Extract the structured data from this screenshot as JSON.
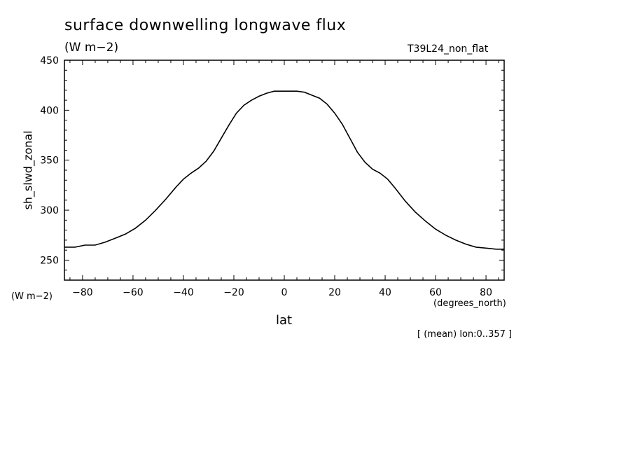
{
  "header": {
    "title": "surface downwelling longwave flux",
    "units": "(W m−2)",
    "run_name": "T39L24_non_flat"
  },
  "footer": {
    "note": "[ (mean) lon:0..357 ]"
  },
  "chart_data": {
    "type": "line",
    "title": "surface downwelling longwave flux",
    "xlabel": "lat",
    "xunits": "(degrees_north)",
    "ylabel": "sh_slwd_zonal",
    "yunits": "(W m−2)",
    "xlim": [
      -87.2,
      87.2
    ],
    "ylim": [
      230,
      450
    ],
    "x_ticks": [
      -80,
      -60,
      -40,
      -20,
      0,
      20,
      40,
      60,
      80
    ],
    "x_tick_labels": [
      "−80",
      "−60",
      "−40",
      "−20",
      "0",
      "20",
      "40",
      "60",
      "80"
    ],
    "y_ticks": [
      250,
      300,
      350,
      400,
      450
    ],
    "y_tick_labels": [
      "250",
      "300",
      "350",
      "400",
      "450"
    ],
    "grid": false,
    "line_color": "#000000",
    "series": [
      {
        "x": [
          -87.2,
          -83,
          -79,
          -75,
          -71,
          -67,
          -63,
          -59,
          -55,
          -51,
          -47,
          -43,
          -40,
          -37,
          -34,
          -31,
          -28,
          -25,
          -22,
          -19,
          -16,
          -13,
          -10,
          -7,
          -4,
          -1,
          2,
          5,
          8,
          11,
          14,
          17,
          20,
          23,
          26,
          29,
          32,
          35,
          38,
          41,
          44,
          48,
          52,
          56,
          60,
          64,
          68,
          72,
          76,
          80,
          84,
          87.2
        ],
        "y": [
          263,
          263,
          265,
          265,
          268,
          272,
          276,
          282,
          290,
          300,
          311,
          323,
          331,
          337,
          342,
          349,
          359,
          372,
          385,
          397,
          405,
          410,
          414,
          417,
          419,
          419,
          419,
          419,
          418,
          415,
          412,
          406,
          397,
          386,
          372,
          358,
          348,
          341,
          337,
          331,
          322,
          309,
          298,
          289,
          281,
          275,
          270,
          266,
          263,
          262,
          261,
          261
        ]
      }
    ]
  }
}
